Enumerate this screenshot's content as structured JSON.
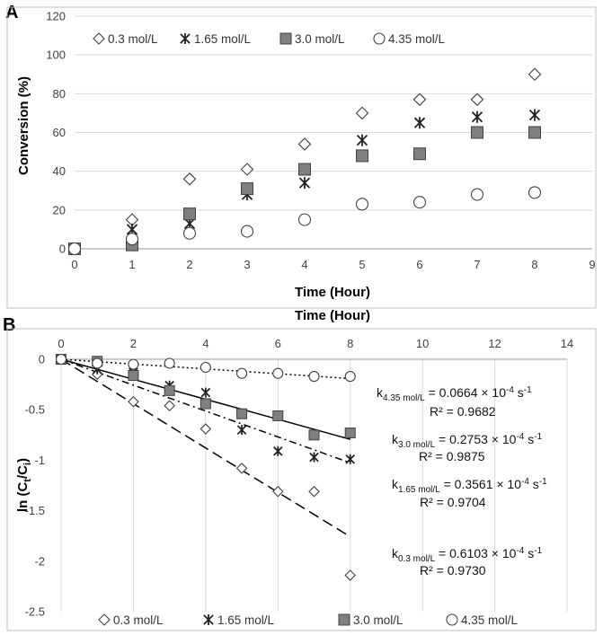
{
  "chart_data": [
    {
      "panel": "A",
      "type": "scatter",
      "xlabel": "Time (Hour)",
      "second_xlabel": "Time (Hour)",
      "ylabel": "Conversion (%)",
      "xlim": [
        0,
        9
      ],
      "ylim": [
        0,
        120
      ],
      "xticks": [
        "0",
        "1",
        "2",
        "3",
        "4",
        "5",
        "6",
        "7",
        "8",
        "9"
      ],
      "yticks": [
        "0",
        "20",
        "40",
        "60",
        "80",
        "100",
        "120"
      ],
      "grid": "horizontal",
      "legend_position": "top-left",
      "series": [
        {
          "name": "0.3 mol/L",
          "marker": "diamond",
          "x": [
            0,
            1,
            2,
            3,
            4,
            5,
            6,
            7,
            8
          ],
          "values": [
            0,
            15,
            36,
            41,
            54,
            70,
            77,
            77,
            90
          ]
        },
        {
          "name": "1.65 mol/L",
          "marker": "asterisk",
          "x": [
            0,
            1,
            2,
            3,
            4,
            5,
            6,
            7,
            8
          ],
          "values": [
            0,
            10,
            13,
            28,
            34,
            56,
            65,
            68,
            69
          ]
        },
        {
          "name": "3.0 mol/L",
          "marker": "square",
          "x": [
            0,
            1,
            2,
            3,
            4,
            5,
            6,
            7,
            8
          ],
          "values": [
            0,
            2,
            18,
            31,
            41,
            48,
            49,
            60,
            60
          ]
        },
        {
          "name": "4.35 mol/L",
          "marker": "circle",
          "x": [
            0,
            1,
            2,
            3,
            4,
            5,
            6,
            7,
            8
          ],
          "values": [
            0,
            5,
            8,
            9,
            15,
            23,
            24,
            28,
            29
          ]
        }
      ]
    },
    {
      "panel": "B",
      "type": "scatter",
      "xlabel": "",
      "ylabel": "ln (Ct/Ci)",
      "xlim": [
        0,
        14
      ],
      "ylim": [
        -2.5,
        0
      ],
      "xticks": [
        "0",
        "2",
        "4",
        "6",
        "8",
        "10",
        "12",
        "14"
      ],
      "yticks": [
        "0",
        "-0.5",
        "-1",
        "-1.5",
        "-2",
        "-2.5"
      ],
      "grid": "vertical",
      "legend_position": "bottom",
      "series": [
        {
          "name": "0.3 mol/L",
          "marker": "diamond",
          "x": [
            0,
            1,
            2,
            3,
            4,
            5,
            6,
            7,
            8
          ],
          "values": [
            0,
            -0.15,
            -0.42,
            -0.46,
            -0.69,
            -1.08,
            -1.31,
            -1.31,
            -2.14
          ],
          "fit_slope": -0.2197,
          "fit_style": "long-dash",
          "k_label": "k",
          "k_sub": "0.3 mol/L",
          "k_text": " = 0.6103 × 10",
          "k_exp": "-4",
          "k_unit": " s",
          "k_unit_exp": "-1",
          "r2_text": "R² = 0.9730"
        },
        {
          "name": "1.65 mol/L",
          "marker": "asterisk",
          "x": [
            0,
            1,
            2,
            3,
            4,
            5,
            6,
            7,
            8
          ],
          "values": [
            0,
            -0.1,
            -0.13,
            -0.26,
            -0.33,
            -0.7,
            -0.91,
            -0.97,
            -0.99
          ],
          "fit_slope": -0.1282,
          "fit_style": "dash-dot",
          "k_label": "k",
          "k_sub": "1.65 mol/L",
          "k_text": " = 0.3561 × 10",
          "k_exp": "-4",
          "k_unit": " s",
          "k_unit_exp": "-1",
          "r2_text": "R² = 0.9704"
        },
        {
          "name": "3.0 mol/L",
          "marker": "square",
          "x": [
            0,
            1,
            2,
            3,
            4,
            5,
            6,
            7,
            8
          ],
          "values": [
            0,
            -0.02,
            -0.16,
            -0.31,
            -0.44,
            -0.54,
            -0.56,
            -0.75,
            -0.73
          ],
          "fit_slope": -0.0991,
          "fit_style": "solid",
          "k_label": "k",
          "k_sub": "3.0 mol/L",
          "k_text": " = 0.2753 × 10",
          "k_exp": "-4",
          "k_unit": " s",
          "k_unit_exp": "-1",
          "r2_text": "R² = 0.9875"
        },
        {
          "name": "4.35 mol/L",
          "marker": "circle",
          "x": [
            0,
            1,
            2,
            3,
            4,
            5,
            6,
            7,
            8
          ],
          "values": [
            0,
            -0.04,
            -0.05,
            -0.04,
            -0.08,
            -0.14,
            -0.14,
            -0.17,
            -0.17
          ],
          "fit_slope": -0.0239,
          "fit_style": "dotted",
          "k_label": "k",
          "k_sub": "4.35 mol/L",
          "k_text": " = 0.0664 × 10",
          "k_exp": "-4",
          "k_unit": " s",
          "k_unit_exp": "-1",
          "r2_text": "R² = 0.9682"
        }
      ]
    }
  ],
  "labels": {
    "panel_a": "A",
    "panel_b": "B"
  },
  "colors": {
    "marker_fill": "#808080",
    "marker_stroke": "#404040",
    "open_fill": "#ffffff",
    "line": "#000000"
  }
}
